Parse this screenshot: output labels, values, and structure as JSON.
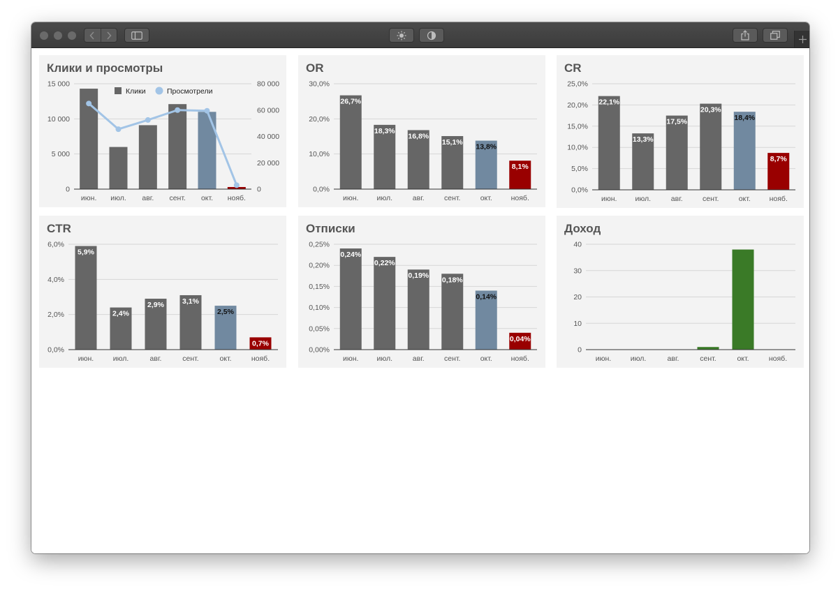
{
  "colors": {
    "bar": "#666666",
    "highlight": "#7189a0",
    "danger": "#990000",
    "revenue": "#3a7a27",
    "line": "#a2c4e6",
    "grid": "#d6d6d6",
    "axis": "#333333",
    "text": "#555555"
  },
  "toolbar": {
    "icons": [
      "back-icon",
      "forward-icon",
      "sidebar-icon",
      "brightness-icon",
      "contrast-icon",
      "share-icon",
      "tabs-icon",
      "new-tab-icon"
    ]
  },
  "chart_data": [
    {
      "id": "clicks",
      "type": "bar",
      "title": "Клики и просмотры",
      "categories": [
        "июн.",
        "июл.",
        "авг.",
        "сент.",
        "окт.",
        "нояб."
      ],
      "series": [
        {
          "name": "Клики",
          "type": "bar",
          "axis": "left",
          "values": [
            14300,
            6000,
            9100,
            12100,
            11000,
            300
          ]
        },
        {
          "name": "Просмотрели",
          "type": "line",
          "axis": "right",
          "values": [
            65000,
            45500,
            52500,
            60000,
            59500,
            3000
          ]
        }
      ],
      "bar_colors": [
        "bar",
        "bar",
        "bar",
        "bar",
        "highlight",
        "danger"
      ],
      "ylim": [
        0,
        15000
      ],
      "yticks": [
        "0",
        "5 000",
        "10 000",
        "15 000"
      ],
      "y2lim": [
        0,
        80000
      ],
      "y2ticks": [
        "0",
        "20 000",
        "40 000",
        "60 000",
        "80 000"
      ],
      "legend": "top",
      "grid": true
    },
    {
      "id": "or",
      "type": "bar",
      "title": "OR",
      "categories": [
        "июн.",
        "июл.",
        "авг.",
        "сент.",
        "окт.",
        "нояб."
      ],
      "values": [
        26.7,
        18.3,
        16.8,
        15.1,
        13.8,
        8.1
      ],
      "data_labels": [
        "26,7%",
        "18,3%",
        "16,8%",
        "15,1%",
        "13,8%",
        "8,1%"
      ],
      "bar_colors": [
        "bar",
        "bar",
        "bar",
        "bar",
        "highlight",
        "danger"
      ],
      "ylim": [
        0,
        30
      ],
      "yticks": [
        "0,0%",
        "10,0%",
        "20,0%",
        "30,0%"
      ],
      "grid": true
    },
    {
      "id": "cr",
      "type": "bar",
      "title": "CR",
      "categories": [
        "июн.",
        "июл.",
        "авг.",
        "сент.",
        "окт.",
        "нояб."
      ],
      "values": [
        22.1,
        13.3,
        17.5,
        20.3,
        18.4,
        8.7
      ],
      "data_labels": [
        "22,1%",
        "13,3%",
        "17,5%",
        "20,3%",
        "18,4%",
        "8,7%"
      ],
      "bar_colors": [
        "bar",
        "bar",
        "bar",
        "bar",
        "highlight",
        "danger"
      ],
      "ylim": [
        0,
        25
      ],
      "yticks": [
        "0,0%",
        "5,0%",
        "10,0%",
        "15,0%",
        "20,0%",
        "25,0%"
      ],
      "grid": true
    },
    {
      "id": "ctr",
      "type": "bar",
      "title": "CTR",
      "categories": [
        "июн.",
        "июл.",
        "авг.",
        "сент.",
        "окт.",
        "нояб."
      ],
      "values": [
        5.9,
        2.4,
        2.9,
        3.1,
        2.5,
        0.7
      ],
      "data_labels": [
        "5,9%",
        "2,4%",
        "2,9%",
        "3,1%",
        "2,5%",
        "0,7%"
      ],
      "bar_colors": [
        "bar",
        "bar",
        "bar",
        "bar",
        "highlight",
        "danger"
      ],
      "ylim": [
        0,
        6
      ],
      "yticks": [
        "0,0%",
        "2,0%",
        "4,0%",
        "6,0%"
      ],
      "grid": true
    },
    {
      "id": "unsub",
      "type": "bar",
      "title": "Отписки",
      "categories": [
        "июн.",
        "июл.",
        "авг.",
        "сент.",
        "окт.",
        "нояб."
      ],
      "values": [
        0.24,
        0.22,
        0.19,
        0.18,
        0.14,
        0.04
      ],
      "data_labels": [
        "0,24%",
        "0,22%",
        "0,19%",
        "0,18%",
        "0,14%",
        "0,04%"
      ],
      "bar_colors": [
        "bar",
        "bar",
        "bar",
        "bar",
        "highlight",
        "danger"
      ],
      "ylim": [
        0,
        0.25
      ],
      "yticks": [
        "0,00%",
        "0,05%",
        "0,10%",
        "0,15%",
        "0,20%",
        "0,25%"
      ],
      "grid": true
    },
    {
      "id": "revenue",
      "type": "bar",
      "title": "Доход",
      "categories": [
        "июн.",
        "июл.",
        "авг.",
        "сент.",
        "окт.",
        "нояб."
      ],
      "values": [
        0,
        0,
        0,
        1,
        38,
        0
      ],
      "bar_colors": [
        "revenue",
        "revenue",
        "revenue",
        "revenue",
        "revenue",
        "revenue"
      ],
      "ylim": [
        0,
        40
      ],
      "yticks": [
        "0",
        "10",
        "20",
        "30",
        "40"
      ],
      "grid": true
    }
  ]
}
